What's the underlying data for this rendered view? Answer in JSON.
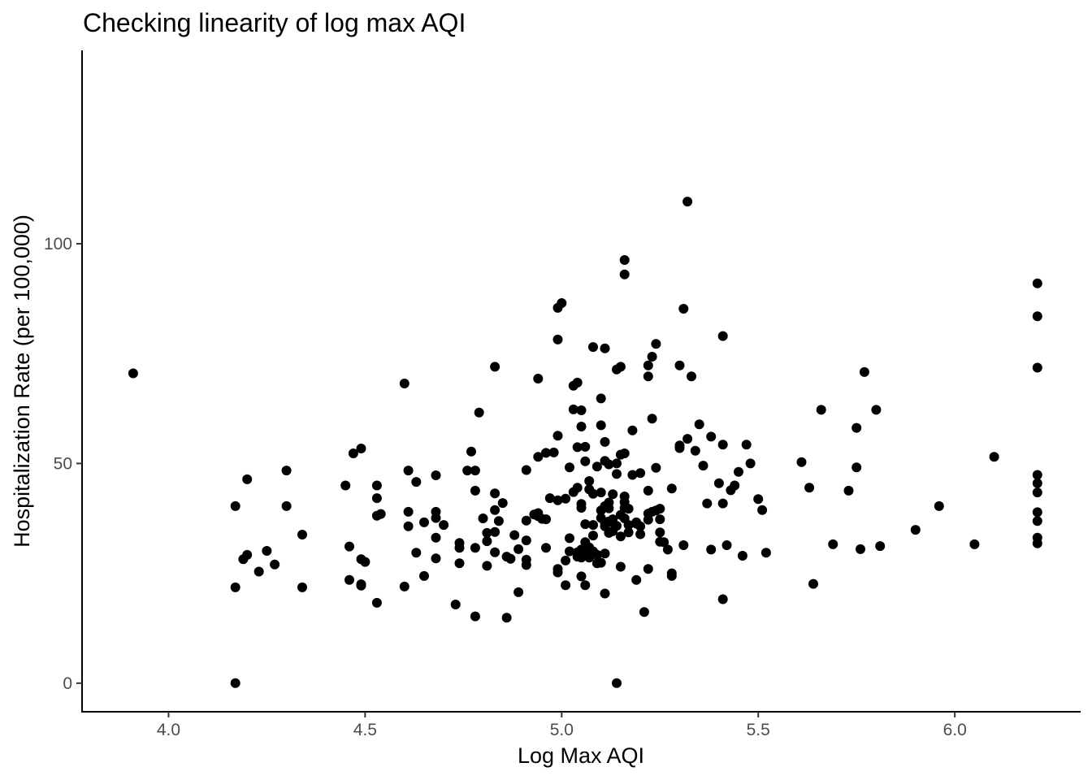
{
  "chart_data": {
    "type": "scatter",
    "title": "Checking linearity of log max AQI",
    "xlabel": "Log Max AQI",
    "ylabel": "Hospitalization Rate (per 100,000)",
    "xlim": [
      3.78,
      6.32
    ],
    "ylim": [
      -6.5,
      144
    ],
    "x_ticks": [
      4.0,
      4.5,
      5.0,
      5.5,
      6.0
    ],
    "x_tick_labels": [
      "4.0",
      "4.5",
      "5.0",
      "5.5",
      "6.0"
    ],
    "y_ticks": [
      0,
      50,
      100
    ],
    "y_tick_labels": [
      "0",
      "50",
      "100"
    ],
    "grid": false,
    "point_color": "#000000",
    "points": [
      [
        3.91,
        70.5
      ],
      [
        4.17,
        40.3
      ],
      [
        4.17,
        21.8
      ],
      [
        4.17,
        0.0
      ],
      [
        4.19,
        28.2
      ],
      [
        4.2,
        29.2
      ],
      [
        4.2,
        46.4
      ],
      [
        4.23,
        25.4
      ],
      [
        4.25,
        30.1
      ],
      [
        4.27,
        27.0
      ],
      [
        4.3,
        48.4
      ],
      [
        4.3,
        40.3
      ],
      [
        4.34,
        33.8
      ],
      [
        4.34,
        21.8
      ],
      [
        4.45,
        45.0
      ],
      [
        4.46,
        31.1
      ],
      [
        4.46,
        23.5
      ],
      [
        4.47,
        52.3
      ],
      [
        4.49,
        53.4
      ],
      [
        4.49,
        28.2
      ],
      [
        4.49,
        22.5
      ],
      [
        4.49,
        22.2
      ],
      [
        4.5,
        27.6
      ],
      [
        4.53,
        45.0
      ],
      [
        4.53,
        42.1
      ],
      [
        4.53,
        38.1
      ],
      [
        4.53,
        18.3
      ],
      [
        4.54,
        38.5
      ],
      [
        4.6,
        68.2
      ],
      [
        4.6,
        22.0
      ],
      [
        4.61,
        48.4
      ],
      [
        4.61,
        39.0
      ],
      [
        4.61,
        35.7
      ],
      [
        4.63,
        45.8
      ],
      [
        4.63,
        29.7
      ],
      [
        4.65,
        36.6
      ],
      [
        4.65,
        24.4
      ],
      [
        4.68,
        47.3
      ],
      [
        4.68,
        39.0
      ],
      [
        4.68,
        37.6
      ],
      [
        4.68,
        33.1
      ],
      [
        4.68,
        28.4
      ],
      [
        4.7,
        36.0
      ],
      [
        4.73,
        17.9
      ],
      [
        4.74,
        31.9
      ],
      [
        4.74,
        30.8
      ],
      [
        4.74,
        27.3
      ],
      [
        4.76,
        48.4
      ],
      [
        4.77,
        52.7
      ],
      [
        4.78,
        48.4
      ],
      [
        4.78,
        43.8
      ],
      [
        4.78,
        30.8
      ],
      [
        4.78,
        15.2
      ],
      [
        4.79,
        61.6
      ],
      [
        4.8,
        37.5
      ],
      [
        4.81,
        34.2
      ],
      [
        4.81,
        32.3
      ],
      [
        4.81,
        26.7
      ],
      [
        4.83,
        72.0
      ],
      [
        4.83,
        43.2
      ],
      [
        4.83,
        39.4
      ],
      [
        4.83,
        34.4
      ],
      [
        4.83,
        29.8
      ],
      [
        4.84,
        36.9
      ],
      [
        4.85,
        41.0
      ],
      [
        4.86,
        28.8
      ],
      [
        4.86,
        14.9
      ],
      [
        4.87,
        28.3
      ],
      [
        4.88,
        33.7
      ],
      [
        4.89,
        30.5
      ],
      [
        4.89,
        20.7
      ],
      [
        4.91,
        48.5
      ],
      [
        4.91,
        37.0
      ],
      [
        4.91,
        32.5
      ],
      [
        4.91,
        28.1
      ],
      [
        4.91,
        26.9
      ],
      [
        4.93,
        38.4
      ],
      [
        4.94,
        69.3
      ],
      [
        4.94,
        51.5
      ],
      [
        4.94,
        38.7
      ],
      [
        4.94,
        38.0
      ],
      [
        4.95,
        37.4
      ],
      [
        4.96,
        52.4
      ],
      [
        4.96,
        37.3
      ],
      [
        4.96,
        30.8
      ],
      [
        4.97,
        42.1
      ],
      [
        4.98,
        52.5
      ],
      [
        4.99,
        85.4
      ],
      [
        4.99,
        78.2
      ],
      [
        4.99,
        56.3
      ],
      [
        4.99,
        41.6
      ],
      [
        4.99,
        26.0
      ],
      [
        4.99,
        25.2
      ],
      [
        5.0,
        86.5
      ],
      [
        5.01,
        42.0
      ],
      [
        5.01,
        27.9
      ],
      [
        5.01,
        22.3
      ],
      [
        5.02,
        49.1
      ],
      [
        5.02,
        33.0
      ],
      [
        5.02,
        30.0
      ],
      [
        5.03,
        67.7
      ],
      [
        5.03,
        62.3
      ],
      [
        5.03,
        43.5
      ],
      [
        5.04,
        68.4
      ],
      [
        5.04,
        53.7
      ],
      [
        5.04,
        44.5
      ],
      [
        5.04,
        29.8
      ],
      [
        5.04,
        28.8
      ],
      [
        5.05,
        62.1
      ],
      [
        5.05,
        58.4
      ],
      [
        5.05,
        40.8
      ],
      [
        5.05,
        39.9
      ],
      [
        5.05,
        24.3
      ],
      [
        5.05,
        28.6
      ],
      [
        5.05,
        30.4
      ],
      [
        5.06,
        53.8
      ],
      [
        5.06,
        50.5
      ],
      [
        5.06,
        36.2
      ],
      [
        5.06,
        32.1
      ],
      [
        5.06,
        22.3
      ],
      [
        5.06,
        30.3
      ],
      [
        5.06,
        29.6
      ],
      [
        5.07,
        46.0
      ],
      [
        5.07,
        44.1
      ],
      [
        5.07,
        30.9
      ],
      [
        5.07,
        28.6
      ],
      [
        5.07,
        30.6
      ],
      [
        5.08,
        76.5
      ],
      [
        5.08,
        43.1
      ],
      [
        5.08,
        36.0
      ],
      [
        5.08,
        33.6
      ],
      [
        5.08,
        30.0
      ],
      [
        5.09,
        49.3
      ],
      [
        5.09,
        29.2
      ],
      [
        5.09,
        27.3
      ],
      [
        5.1,
        64.8
      ],
      [
        5.1,
        58.7
      ],
      [
        5.1,
        43.4
      ],
      [
        5.1,
        39.3
      ],
      [
        5.1,
        37.6
      ],
      [
        5.1,
        27.4
      ],
      [
        5.11,
        76.2
      ],
      [
        5.11,
        50.6
      ],
      [
        5.11,
        40.3
      ],
      [
        5.11,
        35.7
      ],
      [
        5.11,
        29.5
      ],
      [
        5.11,
        20.4
      ],
      [
        5.11,
        54.9
      ],
      [
        5.11,
        36.5
      ],
      [
        5.12,
        49.8
      ],
      [
        5.12,
        41.1
      ],
      [
        5.12,
        39.8
      ],
      [
        5.12,
        34.2
      ],
      [
        5.12,
        36.8
      ],
      [
        5.13,
        43.0
      ],
      [
        5.13,
        36.6
      ],
      [
        5.13,
        34.6
      ],
      [
        5.13,
        37.3
      ],
      [
        5.14,
        71.4
      ],
      [
        5.14,
        50.0
      ],
      [
        5.14,
        47.6
      ],
      [
        5.14,
        35.8
      ],
      [
        5.14,
        0.0
      ],
      [
        5.15,
        72.0
      ],
      [
        5.15,
        52.0
      ],
      [
        5.15,
        38.3
      ],
      [
        5.15,
        33.4
      ],
      [
        5.15,
        26.5
      ],
      [
        5.16,
        96.3
      ],
      [
        5.16,
        93.0
      ],
      [
        5.16,
        52.3
      ],
      [
        5.16,
        42.5
      ],
      [
        5.16,
        41.2
      ],
      [
        5.16,
        37.5
      ],
      [
        5.16,
        39.9
      ],
      [
        5.17,
        39.7
      ],
      [
        5.17,
        36.0
      ],
      [
        5.17,
        34.3
      ],
      [
        5.18,
        57.5
      ],
      [
        5.18,
        47.4
      ],
      [
        5.19,
        36.6
      ],
      [
        5.19,
        36.3
      ],
      [
        5.19,
        23.5
      ],
      [
        5.2,
        47.8
      ],
      [
        5.2,
        35.7
      ],
      [
        5.2,
        33.9
      ],
      [
        5.21,
        16.2
      ],
      [
        5.22,
        72.3
      ],
      [
        5.22,
        69.8
      ],
      [
        5.22,
        43.8
      ],
      [
        5.22,
        38.6
      ],
      [
        5.22,
        37.2
      ],
      [
        5.22,
        26.0
      ],
      [
        5.23,
        74.3
      ],
      [
        5.23,
        60.2
      ],
      [
        5.23,
        39.0
      ],
      [
        5.24,
        77.2
      ],
      [
        5.24,
        49.0
      ],
      [
        5.24,
        39.3
      ],
      [
        5.25,
        39.7
      ],
      [
        5.25,
        37.3
      ],
      [
        5.25,
        34.3
      ],
      [
        5.25,
        32.2
      ],
      [
        5.26,
        32.1
      ],
      [
        5.27,
        30.4
      ],
      [
        5.28,
        44.3
      ],
      [
        5.28,
        25.0
      ],
      [
        5.28,
        24.4
      ],
      [
        5.3,
        72.3
      ],
      [
        5.3,
        54.1
      ],
      [
        5.3,
        53.5
      ],
      [
        5.31,
        85.2
      ],
      [
        5.31,
        31.4
      ],
      [
        5.32,
        109.6
      ],
      [
        5.32,
        55.6
      ],
      [
        5.33,
        69.8
      ],
      [
        5.34,
        52.9
      ],
      [
        5.35,
        58.9
      ],
      [
        5.36,
        49.5
      ],
      [
        5.37,
        40.9
      ],
      [
        5.38,
        56.1
      ],
      [
        5.38,
        30.4
      ],
      [
        5.4,
        45.5
      ],
      [
        5.41,
        79.0
      ],
      [
        5.41,
        54.3
      ],
      [
        5.41,
        40.9
      ],
      [
        5.41,
        19.1
      ],
      [
        5.42,
        31.4
      ],
      [
        5.43,
        43.9
      ],
      [
        5.44,
        45.0
      ],
      [
        5.45,
        48.1
      ],
      [
        5.46,
        29.0
      ],
      [
        5.47,
        54.3
      ],
      [
        5.48,
        50.0
      ],
      [
        5.5,
        41.9
      ],
      [
        5.51,
        39.4
      ],
      [
        5.52,
        29.7
      ],
      [
        5.61,
        50.3
      ],
      [
        5.63,
        44.5
      ],
      [
        5.64,
        22.6
      ],
      [
        5.66,
        62.2
      ],
      [
        5.69,
        31.6
      ],
      [
        5.73,
        43.8
      ],
      [
        5.75,
        58.1
      ],
      [
        5.75,
        49.1
      ],
      [
        5.76,
        30.5
      ],
      [
        5.77,
        70.8
      ],
      [
        5.8,
        62.2
      ],
      [
        5.81,
        31.2
      ],
      [
        5.9,
        34.9
      ],
      [
        5.96,
        40.3
      ],
      [
        6.05,
        31.6
      ],
      [
        6.1,
        51.5
      ],
      [
        6.21,
        91.0
      ],
      [
        6.21,
        83.5
      ],
      [
        6.21,
        71.8
      ],
      [
        6.21,
        47.4
      ],
      [
        6.21,
        45.5
      ],
      [
        6.21,
        43.4
      ],
      [
        6.21,
        38.9
      ],
      [
        6.21,
        36.9
      ],
      [
        6.21,
        33.1
      ],
      [
        6.21,
        31.8
      ]
    ]
  }
}
